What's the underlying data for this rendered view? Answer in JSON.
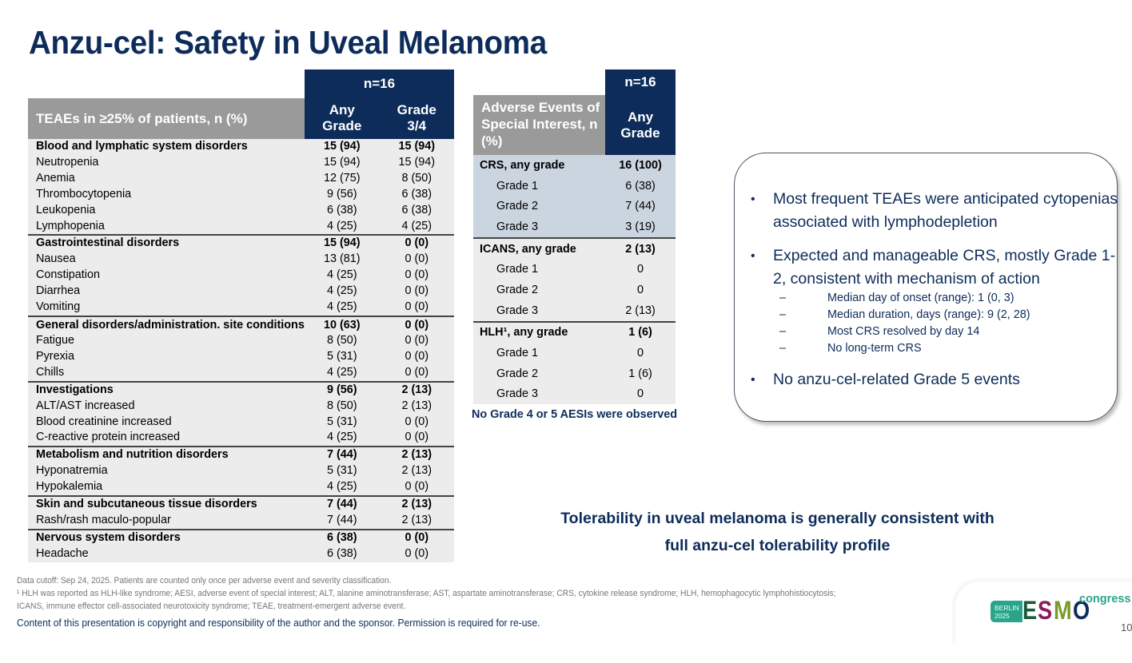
{
  "title": "Anzu-cel: Safety in Uveal Melanoma",
  "teae_table": {
    "n_label": "n=16",
    "header_label": "TEAEs in ≥25% of patients, n (%)",
    "col_any": "Any Grade",
    "col_g34": "Grade 3/4",
    "groups": [
      {
        "rows": [
          {
            "name": "Blood and lymphatic system disorders",
            "any": "15 (94)",
            "g34": "15 (94)",
            "bold": true
          },
          {
            "name": "Neutropenia",
            "any": "15 (94)",
            "g34": "15 (94)"
          },
          {
            "name": "Anemia",
            "any": "12 (75)",
            "g34": "8 (50)"
          },
          {
            "name": "Thrombocytopenia",
            "any": "9 (56)",
            "g34": "6 (38)"
          },
          {
            "name": "Leukopenia",
            "any": "6 (38)",
            "g34": "6 (38)"
          },
          {
            "name": "Lymphopenia",
            "any": "4 (25)",
            "g34": "4 (25)"
          }
        ]
      },
      {
        "rows": [
          {
            "name": "Gastrointestinal disorders",
            "any": "15 (94)",
            "g34": "0 (0)",
            "bold": true
          },
          {
            "name": "Nausea",
            "any": "13 (81)",
            "g34": "0 (0)"
          },
          {
            "name": "Constipation",
            "any": "4 (25)",
            "g34": "0 (0)"
          },
          {
            "name": "Diarrhea",
            "any": "4 (25)",
            "g34": "0 (0)"
          },
          {
            "name": "Vomiting",
            "any": "4 (25)",
            "g34": "0 (0)"
          }
        ]
      },
      {
        "rows": [
          {
            "name": "General disorders/administration. site conditions",
            "any": "10 (63)",
            "g34": "0 (0)",
            "bold": true
          },
          {
            "name": "Fatigue",
            "any": "8 (50)",
            "g34": "0 (0)"
          },
          {
            "name": "Pyrexia",
            "any": "5 (31)",
            "g34": "0 (0)"
          },
          {
            "name": "Chills",
            "any": "4 (25)",
            "g34": "0 (0)"
          }
        ]
      },
      {
        "rows": [
          {
            "name": "Investigations",
            "any": "9 (56)",
            "g34": "2 (13)",
            "bold": true
          },
          {
            "name": "ALT/AST increased",
            "any": "8 (50)",
            "g34": "2 (13)"
          },
          {
            "name": "Blood creatinine increased",
            "any": "5 (31)",
            "g34": "0 (0)"
          },
          {
            "name": "C-reactive protein increased",
            "any": "4 (25)",
            "g34": "0 (0)"
          }
        ]
      },
      {
        "rows": [
          {
            "name": "Metabolism and nutrition disorders",
            "any": "7 (44)",
            "g34": "2 (13)",
            "bold": true
          },
          {
            "name": "Hyponatremia",
            "any": "5 (31)",
            "g34": "2 (13)"
          },
          {
            "name": "Hypokalemia",
            "any": "4 (25)",
            "g34": "0 (0)"
          }
        ]
      },
      {
        "rows": [
          {
            "name": "Skin and subcutaneous tissue disorders",
            "any": "7 (44)",
            "g34": "2 (13)",
            "bold": true
          },
          {
            "name": "Rash/rash maculo-popular",
            "any": "7 (44)",
            "g34": "2 (13)"
          }
        ]
      },
      {
        "rows": [
          {
            "name": "Nervous system disorders",
            "any": "6 (38)",
            "g34": "0 (0)",
            "bold": true
          },
          {
            "name": "Headache",
            "any": "6 (38)",
            "g34": "0 (0)"
          }
        ]
      }
    ]
  },
  "aesi_table": {
    "n_label": "n=16",
    "header_label": "Adverse Events of Special Interest, n (%)",
    "col_any": "Any Grade",
    "groups": [
      {
        "rows": [
          {
            "name": "CRS, any grade",
            "any": "16 (100)",
            "bold": true
          },
          {
            "name": "Grade 1",
            "any": "6 (38)"
          },
          {
            "name": "Grade 2",
            "any": "7 (44)"
          },
          {
            "name": "Grade 3",
            "any": "3 (19)"
          }
        ]
      },
      {
        "rows": [
          {
            "name": "ICANS, any grade",
            "any": "2 (13)",
            "bold": true
          },
          {
            "name": "Grade 1",
            "any": "0"
          },
          {
            "name": "Grade 2",
            "any": "0"
          },
          {
            "name": "Grade 3",
            "any": "2 (13)"
          }
        ]
      },
      {
        "rows": [
          {
            "name": "HLH¹, any grade",
            "any": "1 (6)",
            "bold": true
          },
          {
            "name": "Grade 1",
            "any": "0"
          },
          {
            "name": "Grade 2",
            "any": "1 (6)"
          },
          {
            "name": "Grade 3",
            "any": "0"
          }
        ]
      }
    ],
    "note": "No Grade 4 or 5 AESIs were observed"
  },
  "callout": {
    "bullets": [
      {
        "text": "Most frequent TEAEs were anticipated cytopenias associated with lymphodepletion"
      },
      {
        "text": "Expected and manageable CRS, mostly Grade 1-2, consistent with mechanism of action",
        "sub": [
          "Median day of onset (range): 1 (0, 3)",
          "Median duration, days (range): 9 (2, 28)",
          "Most CRS resolved by day 14",
          "No long-term CRS"
        ]
      },
      {
        "text": "No anzu-cel-related Grade 5 events"
      }
    ]
  },
  "conclusion": {
    "line1": "Tolerability in uveal melanoma is generally consistent with",
    "line2": "full anzu-cel tolerability profile"
  },
  "footnotes": {
    "line1": "Data cutoff: Sep 24, 2025. Patients are counted only once per adverse event and severity classification.",
    "line2": "¹ HLH was reported as HLH-like syndrome; AESI, adverse event of special interest; ALT, alanine aminotransferase; AST, aspartate aminotransferase; CRS, cytokine release syndrome; HLH, hemophagocytic lymphohistiocytosis;",
    "line3": "ICANS, immune effector cell-associated neurotoxicity syndrome; TEAE, treatment-emergent adverse event.",
    "copyright": "Content of this presentation is copyright and responsibility of the author and the sponsor. Permission is required for re-use."
  },
  "logo": {
    "city": "BERLIN",
    "year": "2025",
    "letters": [
      "E",
      "S",
      "M",
      "O"
    ],
    "letter_colors": [
      "#1e5a3a",
      "#8a1a5e",
      "#7a9a2a",
      "#0d2c5a"
    ],
    "suffix": "congress",
    "accent": "#2aa58a"
  },
  "page_number": "10",
  "colors": {
    "navy": "#0d2c5a",
    "header_gray": "#9a9a9a",
    "row_gray": "#ececec",
    "crs_blue": "#cbd5e0"
  }
}
